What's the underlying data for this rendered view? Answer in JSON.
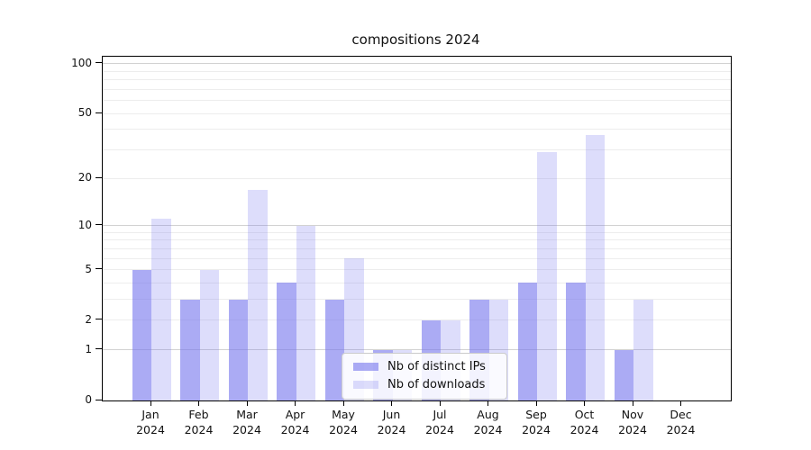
{
  "chart_data": {
    "type": "bar",
    "title": "compositions 2024",
    "xlabel": "",
    "ylabel": "",
    "yscale": "log1p",
    "categories": [
      "Jan",
      "Feb",
      "Mar",
      "Apr",
      "May",
      "Jun",
      "Jul",
      "Aug",
      "Sep",
      "Oct",
      "Nov",
      "Dec"
    ],
    "x_year_line": "2024",
    "series": [
      {
        "name": "Nb of distinct IPs",
        "color": "rgba(119,119,238,0.62)",
        "values": [
          5,
          3,
          3,
          4,
          3,
          1,
          2,
          3,
          4,
          4,
          1,
          0
        ]
      },
      {
        "name": "Nb of downloads",
        "color": "rgba(119,119,238,0.25)",
        "values": [
          11,
          5,
          17,
          10,
          6,
          1,
          2,
          3,
          29,
          37,
          3,
          0
        ]
      }
    ],
    "yticks": [
      0,
      1,
      2,
      5,
      10,
      20,
      50,
      100
    ],
    "ylim": [
      0,
      110
    ],
    "grid_minor": [
      2,
      3,
      4,
      5,
      6,
      7,
      8,
      9,
      20,
      30,
      40,
      50,
      60,
      70,
      80,
      90
    ],
    "grid_major": [
      1,
      10,
      100
    ],
    "legend_position": "lower center",
    "colors": {
      "grid_major": "#d2d2d2",
      "grid_minor": "#ededed",
      "spine": "#000000",
      "text": "#111111"
    }
  }
}
